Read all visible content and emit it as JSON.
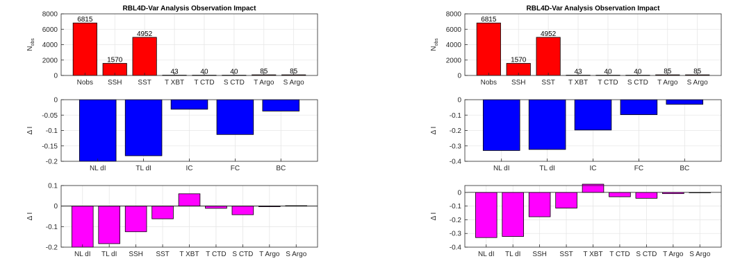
{
  "figure_title": "RBL4D-Var Analysis Observation Impact",
  "chart_data": [
    {
      "id": "left-top",
      "type": "bar",
      "title": "RBL4D-Var Analysis Observation Impact",
      "ylabel": "N",
      "ylabel_sub": "obs",
      "color": "#ff0000",
      "categories": [
        "Nobs",
        "SSH",
        "SST",
        "T XBT",
        "T CTD",
        "S CTD",
        "T Argo",
        "S Argo"
      ],
      "values": [
        6815,
        1570,
        4952,
        43,
        40,
        40,
        85,
        85
      ],
      "data_labels": [
        "6815",
        "1570",
        "4952",
        "43",
        "40",
        "40",
        "85",
        "85"
      ],
      "ylim": [
        0,
        8000
      ],
      "yticks": [
        0,
        2000,
        4000,
        6000,
        8000
      ],
      "ytick_labels": [
        "0",
        "2000",
        "4000",
        "6000",
        "8000"
      ],
      "xlim": [
        0.2,
        8.8
      ],
      "grid": true
    },
    {
      "id": "left-mid",
      "type": "bar",
      "title": "",
      "ylabel": "Δ I",
      "color": "#0000ff",
      "categories": [
        "NL dI",
        "TL dI",
        "IC",
        "FC",
        "BC"
      ],
      "values": [
        -0.2,
        -0.182,
        -0.031,
        -0.113,
        -0.037
      ],
      "ylim": [
        -0.2,
        0
      ],
      "yticks": [
        -0.2,
        -0.15,
        -0.1,
        -0.05,
        0
      ],
      "ytick_labels": [
        "-0.2",
        "-0.15",
        "-0.1",
        "-0.05",
        "0"
      ],
      "xlim": [
        0.2,
        5.8
      ],
      "grid": true
    },
    {
      "id": "left-bot",
      "type": "bar",
      "title": "",
      "ylabel": "Δ I",
      "color": "#ff00ff",
      "categories": [
        "NL dI",
        "TL dI",
        "SSH",
        "SST",
        "T XBT",
        "T CTD",
        "S CTD",
        "T Argo",
        "S Argo"
      ],
      "values": [
        -0.2,
        -0.183,
        -0.125,
        -0.062,
        0.06,
        -0.011,
        -0.042,
        -0.003,
        0.002
      ],
      "ylim": [
        -0.2,
        0.1
      ],
      "yticks": [
        -0.2,
        -0.1,
        0,
        0.1
      ],
      "ytick_labels": [
        "-0.2",
        "-0.1",
        "0",
        "0.1"
      ],
      "xlim": [
        0.2,
        9.8
      ],
      "grid": true
    },
    {
      "id": "right-top",
      "type": "bar",
      "title": "RBL4D-Var Analysis Observation Impact",
      "ylabel": "N",
      "ylabel_sub": "obs",
      "color": "#ff0000",
      "categories": [
        "Nobs",
        "SSH",
        "SST",
        "T XBT",
        "T CTD",
        "S CTD",
        "T Argo",
        "S Argo"
      ],
      "values": [
        6815,
        1570,
        4952,
        43,
        40,
        40,
        85,
        85
      ],
      "data_labels": [
        "6815",
        "1570",
        "4952",
        "43",
        "40",
        "40",
        "85",
        "85"
      ],
      "ylim": [
        0,
        8000
      ],
      "yticks": [
        0,
        2000,
        4000,
        6000,
        8000
      ],
      "ytick_labels": [
        "0",
        "2000",
        "4000",
        "6000",
        "8000"
      ],
      "xlim": [
        0.2,
        8.8
      ],
      "grid": true
    },
    {
      "id": "right-mid",
      "type": "bar",
      "title": "",
      "ylabel": "Δ I",
      "color": "#0000ff",
      "categories": [
        "NL dI",
        "TL dI",
        "IC",
        "FC",
        "BC"
      ],
      "values": [
        -0.33,
        -0.323,
        -0.197,
        -0.097,
        -0.03
      ],
      "ylim": [
        -0.4,
        0
      ],
      "yticks": [
        -0.4,
        -0.3,
        -0.2,
        -0.1,
        0
      ],
      "ytick_labels": [
        "-0.4",
        "-0.3",
        "-0.2",
        "-0.1",
        "0"
      ],
      "xlim": [
        0.2,
        5.8
      ],
      "grid": true
    },
    {
      "id": "right-bot",
      "type": "bar",
      "title": "",
      "ylabel": "Δ I",
      "color": "#ff00ff",
      "categories": [
        "NL dI",
        "TL dI",
        "SSH",
        "SST",
        "T XBT",
        "T CTD",
        "S CTD",
        "T Argo",
        "S Argo"
      ],
      "values": [
        -0.33,
        -0.322,
        -0.178,
        -0.115,
        0.06,
        -0.032,
        -0.043,
        -0.009,
        -0.003
      ],
      "ylim": [
        -0.4,
        0.05
      ],
      "yticks": [
        -0.4,
        -0.3,
        -0.2,
        -0.1,
        0
      ],
      "ytick_labels": [
        "-0.4",
        "-0.3",
        "-0.2",
        "-0.1",
        "0"
      ],
      "xlim": [
        0.2,
        9.8
      ],
      "grid": true
    }
  ]
}
